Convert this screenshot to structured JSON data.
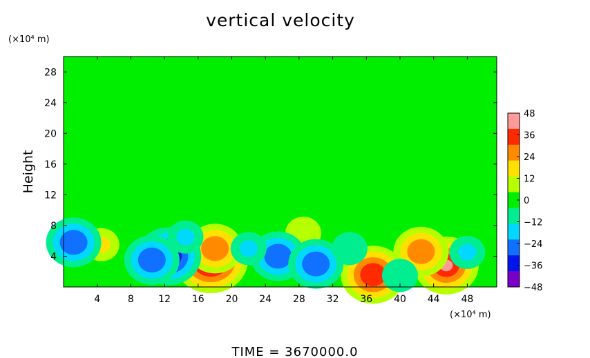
{
  "chart_data": {
    "type": "heatmap",
    "title": "vertical velocity",
    "ylabel": "Height",
    "xlabel": "",
    "x_unit": "(×10⁴ m)",
    "y_unit": "(×10⁴ m)",
    "xlim": [
      0,
      51.5
    ],
    "ylim": [
      0,
      30
    ],
    "x_ticks": [
      4,
      8,
      12,
      16,
      20,
      24,
      28,
      32,
      36,
      40,
      44,
      48
    ],
    "y_ticks": [
      4,
      8,
      12,
      16,
      20,
      24,
      28
    ],
    "colorbar": {
      "range": [
        -48,
        48
      ],
      "ticks": [
        48,
        36,
        24,
        12,
        0,
        -12,
        -24,
        -36,
        -48
      ],
      "colors": [
        "#ff9a9a",
        "#ff2a00",
        "#ff8a00",
        "#ffe000",
        "#b6ff00",
        "#00ee00",
        "#00ee90",
        "#00d8ff",
        "#1070ff",
        "#0014ee",
        "#7a00c8"
      ]
    },
    "background_value": 0,
    "features": [
      {
        "x": 17.5,
        "y": 3.5,
        "value": 44
      },
      {
        "x": 18.0,
        "y": 5.0,
        "value": 30
      },
      {
        "x": 45.5,
        "y": 2.8,
        "value": 40
      },
      {
        "x": 42.5,
        "y": 4.6,
        "value": 28
      },
      {
        "x": 36.8,
        "y": 1.6,
        "value": 34
      },
      {
        "x": 4.5,
        "y": 5.5,
        "value": 14
      },
      {
        "x": 28.5,
        "y": 7.0,
        "value": 10
      },
      {
        "x": 12.5,
        "y": 4.0,
        "value": -40
      },
      {
        "x": 10.5,
        "y": 3.5,
        "value": -26
      },
      {
        "x": 25.5,
        "y": 4.0,
        "value": -26
      },
      {
        "x": 30.0,
        "y": 3.0,
        "value": -30
      },
      {
        "x": 1.2,
        "y": 5.8,
        "value": -30
      },
      {
        "x": 22.0,
        "y": 5.0,
        "value": -14
      },
      {
        "x": 34.0,
        "y": 5.0,
        "value": -12
      },
      {
        "x": 48.0,
        "y": 4.5,
        "value": -16
      },
      {
        "x": 14.5,
        "y": 6.5,
        "value": -14
      },
      {
        "x": 40.0,
        "y": 1.5,
        "value": -10
      },
      {
        "x": 24.0,
        "y": 18.0,
        "value": -4
      },
      {
        "x": 38.0,
        "y": 16.0,
        "value": 4
      }
    ],
    "footer_label": "TIME = 3670000.0"
  }
}
